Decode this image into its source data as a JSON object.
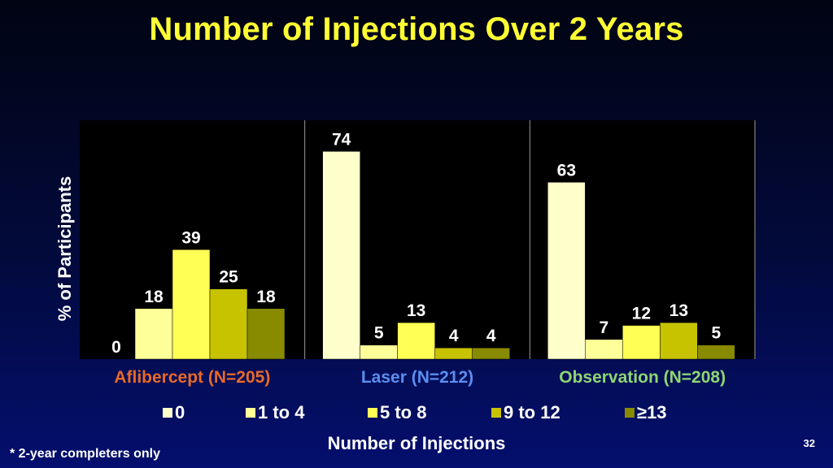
{
  "slide": {
    "title": "Number of Injections Over 2 Years",
    "footnote": "* 2-year completers only",
    "page_number": "32"
  },
  "chart_data": {
    "type": "bar",
    "ylabel": "% of Participants",
    "xlabel": "Number of Injections",
    "ylim": [
      0,
      80
    ],
    "grid": false,
    "legend_position": "bottom",
    "groups": [
      {
        "label": "Aflibercept (N=205)",
        "color": "#e8692a"
      },
      {
        "label": "Laser (N=212)",
        "color": "#5b8ef0"
      },
      {
        "label": "Observation (N=208)",
        "color": "#8ed672"
      }
    ],
    "series": [
      {
        "name": "0",
        "color": "#ffffcc",
        "values": [
          0,
          74,
          63
        ]
      },
      {
        "name": "1 to 4",
        "color": "#ffff99",
        "values": [
          18,
          5,
          7
        ]
      },
      {
        "name": "5 to 8",
        "color": "#ffff55",
        "values": [
          39,
          13,
          12
        ]
      },
      {
        "name": "9 to 12",
        "color": "#c7c300",
        "values": [
          25,
          4,
          13
        ]
      },
      {
        "name": "≥13",
        "color": "#888a00",
        "values": [
          18,
          4,
          5
        ]
      }
    ]
  }
}
